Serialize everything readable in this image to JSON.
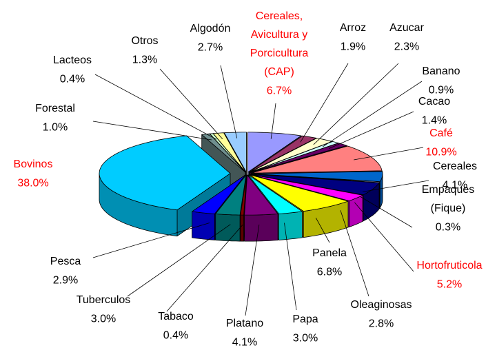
{
  "chart_data": {
    "type": "pie",
    "categories": [
      "Cereales,\nAvicultura y\nPorcicultura\n(CAP)",
      "Arroz",
      "Azucar",
      "Banano",
      "Cacao",
      "Café",
      "Cereales",
      "Empaques\n(Fique)",
      "Hortofruticola",
      "Oleaginosas",
      "Panela",
      "Papa",
      "Platano",
      "Tabaco",
      "Tuberculos",
      "Pesca",
      "Bovinos",
      "Forestal",
      "Lacteos",
      "Otros",
      "Algodón"
    ],
    "values": [
      6.7,
      1.9,
      2.3,
      0.9,
      1.4,
      10.9,
      4.1,
      0.3,
      5.2,
      2.8,
      6.8,
      3.0,
      4.1,
      0.4,
      3.0,
      2.9,
      38.0,
      1.0,
      0.4,
      1.3,
      2.7
    ],
    "value_labels": [
      "6.7%",
      "1.9%",
      "2.3%",
      "0.9%",
      "1.4%",
      "10.9%",
      "4.1%",
      "0.3%",
      "5.2%",
      "2.8%",
      "6.8%",
      "3.0%",
      "4.1%",
      "0.4%",
      "3.0%",
      "2.9%",
      "38.0%",
      "1.0%",
      "0.4%",
      "1.3%",
      "2.7%"
    ],
    "colors": [
      "#9999ff",
      "#993366",
      "#ffffcc",
      "#ccffff",
      "#660066",
      "#ff8080",
      "#0066cc",
      "#ccccff",
      "#000080",
      "#ff00ff",
      "#ffff00",
      "#00ffff",
      "#800080",
      "#800000",
      "#008080",
      "#0000ff",
      "#00ccff",
      "#6f8f8f",
      "#ccffcc",
      "#ffff99",
      "#99ccff"
    ],
    "label_colors": [
      "#ff0000",
      "#000000",
      "#000000",
      "#000000",
      "#000000",
      "#ff0000",
      "#000000",
      "#000000",
      "#ff0000",
      "#000000",
      "#000000",
      "#000000",
      "#000000",
      "#000000",
      "#000000",
      "#000000",
      "#ff0000",
      "#000000",
      "#000000",
      "#000000",
      "#000000"
    ]
  }
}
